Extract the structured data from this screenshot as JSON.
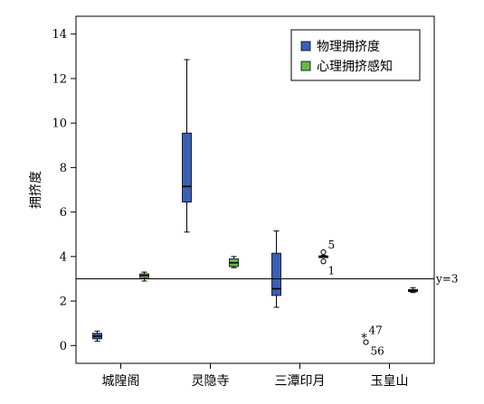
{
  "chart_data": {
    "type": "box",
    "title": "",
    "xlabel": "",
    "ylabel": "拥挤度",
    "ylim": [
      -0.8,
      14.8
    ],
    "yticks": [
      0,
      2,
      4,
      6,
      8,
      10,
      12,
      14
    ],
    "categories": [
      "城隍阁",
      "灵隐寺",
      "三潭印月",
      "玉皇山"
    ],
    "legend_position": "top-right",
    "series": [
      {
        "name": "物理拥挤度",
        "color": "#3b5fb6",
        "boxes": [
          {
            "category": "城隍阁",
            "min": 0.2,
            "q1": 0.3,
            "median": 0.42,
            "q3": 0.55,
            "max": 0.65
          },
          {
            "category": "灵隐寺",
            "min": 5.1,
            "q1": 6.45,
            "median": 7.15,
            "q3": 9.55,
            "max": 12.85
          },
          {
            "category": "三潭印月",
            "min": 1.72,
            "q1": 2.25,
            "median": 2.55,
            "q3": 4.15,
            "max": 5.15
          },
          {
            "category": "玉皇山",
            "min": null,
            "q1": null,
            "median": null,
            "q3": null,
            "max": null
          }
        ]
      },
      {
        "name": "心理拥挤感知",
        "color": "#6ab84a",
        "boxes": [
          {
            "category": "城隍阁",
            "min": 2.9,
            "q1": 3.05,
            "median": 3.15,
            "q3": 3.22,
            "max": 3.3
          },
          {
            "category": "灵隐寺",
            "min": 3.5,
            "q1": 3.55,
            "median": 3.72,
            "q3": 3.9,
            "max": 4.0
          },
          {
            "category": "三潭印月",
            "min": 3.95,
            "q1": 3.97,
            "median": 4.0,
            "q3": 4.03,
            "max": 4.05
          },
          {
            "category": "玉皇山",
            "min": 2.38,
            "q1": 2.42,
            "median": 2.47,
            "q3": 2.52,
            "max": 2.6
          }
        ]
      }
    ],
    "outliers": [
      {
        "category": "三潭印月",
        "series": "心理拥挤感知",
        "y": 4.2,
        "marker": "circle",
        "label": "5"
      },
      {
        "category": "三潭印月",
        "series": "心理拥挤感知",
        "y": 3.78,
        "marker": "circle",
        "label": "1"
      },
      {
        "category": "玉皇山",
        "series": "物理拥挤度",
        "y": 0.35,
        "marker": "star",
        "label": "47"
      },
      {
        "category": "玉皇山",
        "series": "物理拥挤度",
        "y": 0.15,
        "marker": "circle",
        "label": "56"
      }
    ],
    "reference_line": {
      "y": 3,
      "label": "y=3"
    }
  }
}
